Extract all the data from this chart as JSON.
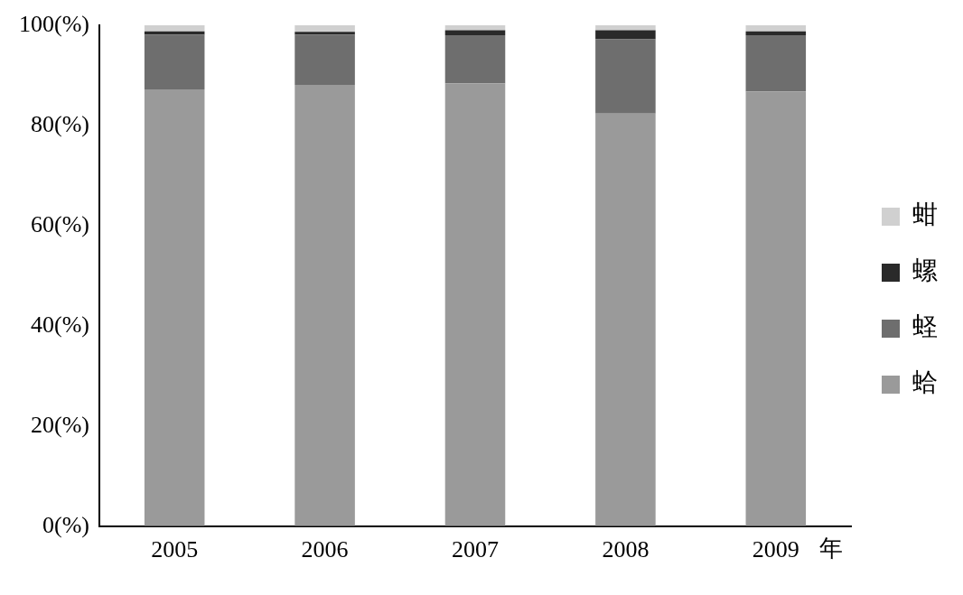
{
  "chart_data": {
    "type": "bar",
    "stacked": true,
    "xlabel": "年",
    "categories": [
      "2005",
      "2006",
      "2007",
      "2008",
      "2009"
    ],
    "series": [
      {
        "name": "蛤",
        "color": "#9a9a9a",
        "values": [
          87.2,
          88.1,
          88.4,
          82.4,
          86.8
        ]
      },
      {
        "name": "蛏",
        "color": "#6e6e6e",
        "values": [
          10.9,
          10.0,
          9.6,
          14.8,
          11.2
        ]
      },
      {
        "name": "螺",
        "color": "#2a2a2a",
        "values": [
          0.7,
          0.6,
          1.0,
          1.8,
          0.8
        ]
      },
      {
        "name": "蚶",
        "color": "#d0d0d0",
        "values": [
          1.2,
          1.3,
          1.0,
          1.0,
          1.2
        ]
      }
    ],
    "ylim": [
      0,
      100
    ],
    "yticks": [
      {
        "value": 0,
        "label": "0(%)"
      },
      {
        "value": 20,
        "label": "20(%)"
      },
      {
        "value": 40,
        "label": "40(%)"
      },
      {
        "value": 60,
        "label": "60(%)"
      },
      {
        "value": 80,
        "label": "80(%)"
      },
      {
        "value": 100,
        "label": "100(%)"
      }
    ],
    "grid": false,
    "legend": "right"
  }
}
